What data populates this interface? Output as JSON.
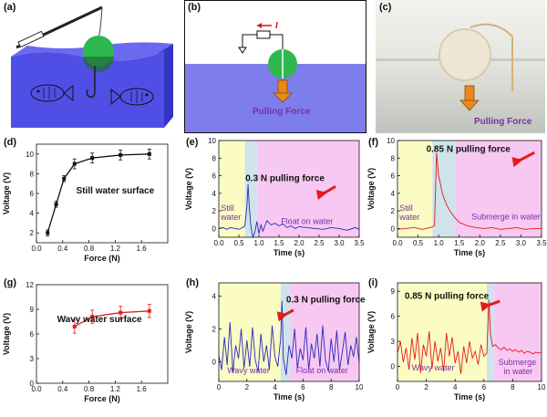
{
  "panels": {
    "a": {
      "label": "(a)"
    },
    "b": {
      "label": "(b)",
      "current_symbol": "I",
      "force_label": "Pulling Force"
    },
    "c": {
      "label": "(c)",
      "force_label": "Pulling Force"
    }
  },
  "colors": {
    "water": "#4f4fe6",
    "ball": "#2fb84e",
    "arrow": "#e8891b",
    "force_text": "#7b2fa6",
    "still_region": "#fbfbc4",
    "transition_region": "#cfe3ea",
    "float_region": "#f7c8f2",
    "blue_trace": "#2a2ab8",
    "red_trace": "#e31b1b"
  },
  "chart_data": [
    {
      "id": "d",
      "label": "(d)",
      "type": "line",
      "xlabel": "Force (N)",
      "ylabel": "Voltage (V)",
      "xlim": [
        0,
        2.0
      ],
      "ylim": [
        1,
        11
      ],
      "xticks": [
        "0.0",
        "0.4",
        "0.8",
        "1.2",
        "1.6"
      ],
      "xtick_vals": [
        0,
        0.4,
        0.8,
        1.2,
        1.6
      ],
      "yticks": [
        "2",
        "4",
        "6",
        "8",
        "10"
      ],
      "ytick_vals": [
        2,
        4,
        6,
        8,
        10
      ],
      "annotation": "Still water surface",
      "series": [
        {
          "color": "#111111",
          "x": [
            0.17,
            0.3,
            0.42,
            0.58,
            0.85,
            1.28,
            1.72
          ],
          "y": [
            2.0,
            4.9,
            7.5,
            9.0,
            9.6,
            9.9,
            10.0
          ],
          "err": [
            0.3,
            0.3,
            0.3,
            0.5,
            0.5,
            0.5,
            0.5
          ]
        }
      ]
    },
    {
      "id": "e",
      "label": "(e)",
      "type": "line",
      "xlabel": "Time (s)",
      "ylabel": "Voltage (V)",
      "xlim": [
        0,
        3.5
      ],
      "ylim": [
        -1,
        10
      ],
      "xticks": [
        "0.0",
        "0.5",
        "1.0",
        "1.5",
        "2.0",
        "2.5",
        "3.0",
        "3.5"
      ],
      "xtick_vals": [
        0,
        0.5,
        1,
        1.5,
        2,
        2.5,
        3,
        3.5
      ],
      "yticks": [
        "0",
        "2",
        "4",
        "6",
        "8",
        "10"
      ],
      "ytick_vals": [
        0,
        2,
        4,
        6,
        8,
        10
      ],
      "regions": [
        {
          "from": 0,
          "to": 0.65,
          "color": "#fbfbc4"
        },
        {
          "from": 0.65,
          "to": 0.95,
          "color": "#cfe3ea"
        },
        {
          "from": 0.95,
          "to": 3.5,
          "color": "#f7c8f2"
        }
      ],
      "region_labels": [
        {
          "text": "Still water",
          "x": 0.05,
          "y": 2.0,
          "color": "#7b2fa6"
        },
        {
          "text": "Float on water",
          "x": 1.55,
          "y": 0.5,
          "color": "#7b2fa6"
        }
      ],
      "annotation": "0.3 N pulling force",
      "series": [
        {
          "color": "#2a2ab8",
          "x": [
            0,
            0.1,
            0.2,
            0.3,
            0.4,
            0.5,
            0.6,
            0.65,
            0.7,
            0.73,
            0.76,
            0.8,
            0.85,
            0.9,
            0.95,
            1.0,
            1.05,
            1.1,
            1.2,
            1.3,
            1.4,
            1.5,
            1.6,
            1.7,
            1.8,
            1.9,
            2.0,
            2.2,
            2.4,
            2.6,
            2.8,
            3.0,
            3.2,
            3.4,
            3.5
          ],
          "y": [
            0,
            0.1,
            -0.1,
            0.1,
            0,
            -0.1,
            0.1,
            0.3,
            2.5,
            5.0,
            2.5,
            0.2,
            -1.0,
            -0.4,
            0.8,
            -0.6,
            0.4,
            -0.3,
            0.9,
            0.4,
            0.6,
            0.3,
            0.5,
            0.1,
            0.3,
            0.0,
            0.2,
            0.1,
            0.0,
            -0.1,
            0.1,
            0.0,
            -0.2,
            0.1,
            -0.1
          ]
        }
      ]
    },
    {
      "id": "f",
      "label": "(f)",
      "type": "line",
      "xlabel": "Time (s)",
      "ylabel": "Voltage (V)",
      "xlim": [
        0,
        3.5
      ],
      "ylim": [
        -1,
        10
      ],
      "xticks": [
        "0.0",
        "0.5",
        "1.0",
        "1.5",
        "2.0",
        "2.5",
        "3.0",
        "3.5"
      ],
      "xtick_vals": [
        0,
        0.5,
        1,
        1.5,
        2,
        2.5,
        3,
        3.5
      ],
      "yticks": [
        "0",
        "2",
        "4",
        "6",
        "8",
        "10"
      ],
      "ytick_vals": [
        0,
        2,
        4,
        6,
        8,
        10
      ],
      "regions": [
        {
          "from": 0,
          "to": 0.85,
          "color": "#fbfbc4"
        },
        {
          "from": 0.85,
          "to": 1.4,
          "color": "#cfe3ea"
        },
        {
          "from": 1.4,
          "to": 3.5,
          "color": "#f7c8f2"
        }
      ],
      "region_labels": [
        {
          "text": "Still water",
          "x": 0.05,
          "y": 2.0,
          "color": "#7b2fa6"
        },
        {
          "text": "Submerge in water",
          "x": 1.8,
          "y": 1.0,
          "color": "#7b2fa6"
        }
      ],
      "annotation": "0.85 N pulling force",
      "series": [
        {
          "color": "#e31b1b",
          "x": [
            0,
            0.2,
            0.4,
            0.6,
            0.8,
            0.9,
            0.95,
            1.0,
            1.1,
            1.2,
            1.3,
            1.4,
            1.5,
            1.7,
            1.9,
            2.1,
            2.3,
            2.5,
            2.7,
            2.9,
            3.1,
            3.3,
            3.5
          ],
          "y": [
            -0.1,
            0,
            0.1,
            -0.1,
            0.1,
            0.3,
            8.6,
            6.0,
            3.8,
            2.6,
            1.8,
            1.2,
            0.7,
            0.3,
            0.1,
            0.0,
            0.1,
            -0.1,
            0.0,
            0.1,
            -0.1,
            0.0,
            0.0
          ]
        }
      ]
    },
    {
      "id": "g",
      "label": "(g)",
      "type": "line",
      "xlabel": "Force (N)",
      "ylabel": "Voltage (V)",
      "xlim": [
        0,
        2.0
      ],
      "ylim": [
        0,
        12
      ],
      "xticks": [
        "0.0",
        "0.4",
        "0.8",
        "1.2",
        "1.6"
      ],
      "xtick_vals": [
        0,
        0.4,
        0.8,
        1.2,
        1.6
      ],
      "yticks": [
        "0",
        "3",
        "6",
        "9",
        "12"
      ],
      "ytick_vals": [
        0,
        3,
        6,
        9,
        12
      ],
      "annotation": "Wavy water surface",
      "series": [
        {
          "color": "#e31b1b",
          "x": [
            0.58,
            0.85,
            1.28,
            1.72
          ],
          "y": [
            6.9,
            8.1,
            8.6,
            8.8
          ],
          "err": [
            0.8,
            0.8,
            0.8,
            0.8
          ]
        }
      ]
    },
    {
      "id": "h",
      "label": "(h)",
      "type": "line",
      "xlabel": "Time (s)",
      "ylabel": "Voltage (V)",
      "xlim": [
        0,
        10
      ],
      "ylim": [
        -1.2,
        4.8
      ],
      "xticks": [
        "0",
        "2",
        "4",
        "6",
        "8",
        "10"
      ],
      "xtick_vals": [
        0,
        2,
        4,
        6,
        8,
        10
      ],
      "yticks": [
        "0",
        "2",
        "4"
      ],
      "ytick_vals": [
        0,
        2,
        4
      ],
      "regions": [
        {
          "from": 0,
          "to": 4.4,
          "color": "#fbfbc4"
        },
        {
          "from": 4.4,
          "to": 5.1,
          "color": "#cfe3ea"
        },
        {
          "from": 5.1,
          "to": 10,
          "color": "#f7c8f2"
        }
      ],
      "region_labels": [
        {
          "text": "Wavy water",
          "x": 0.6,
          "y": -0.7,
          "color": "#7b2fa6"
        },
        {
          "text": "Float on water",
          "x": 5.5,
          "y": -0.7,
          "color": "#7b2fa6"
        }
      ],
      "annotation": "0.3 N pulling force",
      "series": [
        {
          "color": "#2a2ab8",
          "x": [
            0,
            0.2,
            0.4,
            0.6,
            0.8,
            1.0,
            1.2,
            1.4,
            1.6,
            1.8,
            2.0,
            2.2,
            2.4,
            2.6,
            2.8,
            3.0,
            3.2,
            3.4,
            3.6,
            3.8,
            4.0,
            4.2,
            4.4,
            4.5,
            4.6,
            4.8,
            5.0,
            5.2,
            5.4,
            5.6,
            5.8,
            6.0,
            6.2,
            6.4,
            6.6,
            6.8,
            7.0,
            7.2,
            7.4,
            7.6,
            7.8,
            8.0,
            8.2,
            8.4,
            8.6,
            8.8,
            9.0,
            9.2,
            9.4,
            9.6,
            9.8,
            10.0
          ],
          "y": [
            0.4,
            -0.5,
            1.5,
            -0.2,
            2.4,
            -0.6,
            1.0,
            0.2,
            2.0,
            -0.4,
            1.3,
            -0.3,
            2.1,
            0.1,
            -0.6,
            1.7,
            0.0,
            1.0,
            -0.5,
            2.2,
            0.3,
            -0.3,
            1.4,
            3.7,
            0.2,
            -0.8,
            1.0,
            0.2,
            2.0,
            -0.4,
            0.8,
            0.1,
            2.1,
            -0.5,
            1.1,
            0.2,
            1.7,
            -0.3,
            2.2,
            0.1,
            -0.6,
            1.4,
            0.0,
            1.9,
            -0.5,
            0.6,
            1.8,
            -0.2,
            1.0,
            0.3,
            1.5,
            -0.1
          ]
        }
      ]
    },
    {
      "id": "i",
      "label": "(i)",
      "type": "line",
      "xlabel": "Time (s)",
      "ylabel": "Voltage (V)",
      "xlim": [
        0,
        10
      ],
      "ylim": [
        -1.8,
        10
      ],
      "xticks": [
        "0",
        "2",
        "4",
        "6",
        "8",
        "10"
      ],
      "xtick_vals": [
        0,
        2,
        4,
        6,
        8,
        10
      ],
      "yticks": [
        "0",
        "3",
        "6",
        "9"
      ],
      "ytick_vals": [
        0,
        3,
        6,
        9
      ],
      "regions": [
        {
          "from": 0,
          "to": 6.2,
          "color": "#fbfbc4"
        },
        {
          "from": 6.2,
          "to": 6.7,
          "color": "#cfe3ea"
        },
        {
          "from": 6.7,
          "to": 10,
          "color": "#f7c8f2"
        }
      ],
      "region_labels": [
        {
          "text": "Wavy water",
          "x": 1.0,
          "y": -0.5,
          "color": "#7b2fa6"
        },
        {
          "text": "Submerge in water",
          "x": 7.0,
          "y": -0.5,
          "color": "#7b2fa6"
        }
      ],
      "annotation": "0.85 N pulling force",
      "series": [
        {
          "color": "#e31b1b",
          "x": [
            0,
            0.2,
            0.4,
            0.6,
            0.8,
            1.0,
            1.2,
            1.4,
            1.6,
            1.8,
            2.0,
            2.2,
            2.4,
            2.6,
            2.8,
            3.0,
            3.2,
            3.4,
            3.6,
            3.8,
            4.0,
            4.2,
            4.4,
            4.6,
            4.8,
            5.0,
            5.2,
            5.4,
            5.6,
            5.8,
            6.0,
            6.2,
            6.35,
            6.45,
            6.6,
            6.8,
            7.0,
            7.2,
            7.4,
            7.6,
            7.8,
            8.0,
            8.2,
            8.4,
            8.6,
            8.8,
            9.0,
            9.2,
            9.4,
            9.6,
            9.8,
            10.0
          ],
          "y": [
            1.5,
            3.0,
            0.5,
            2.2,
            -0.4,
            3.4,
            0.8,
            4.0,
            -0.8,
            2.6,
            1.2,
            4.2,
            -0.3,
            3.0,
            0.6,
            2.2,
            -0.6,
            4.0,
            1.2,
            3.5,
            0.4,
            1.8,
            -0.9,
            2.4,
            0.4,
            3.0,
            1.0,
            1.8,
            0.2,
            2.6,
            1.2,
            1.6,
            8.0,
            4.0,
            2.4,
            2.6,
            2.2,
            2.0,
            2.3,
            1.9,
            2.1,
            1.8,
            2.0,
            1.7,
            1.9,
            1.6,
            1.8,
            1.7,
            1.5,
            1.7,
            1.6,
            1.7
          ]
        }
      ]
    }
  ]
}
